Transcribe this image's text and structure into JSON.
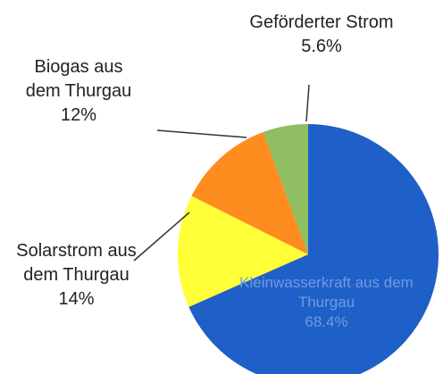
{
  "chart_data": {
    "type": "pie",
    "categories": [
      "Kleinwasserkraft aus dem Thurgau",
      "Solarstrom aus dem Thurgau",
      "Biogas aus dem Thurgau",
      "Geförderter Strom"
    ],
    "values": [
      68.4,
      14,
      12,
      5.6
    ],
    "value_labels": [
      "68.4%",
      "14%",
      "12%",
      "5.6%"
    ],
    "colors": [
      "#1f5fc8",
      "#ffff38",
      "#ff8c1f",
      "#8fbf62"
    ]
  }
}
